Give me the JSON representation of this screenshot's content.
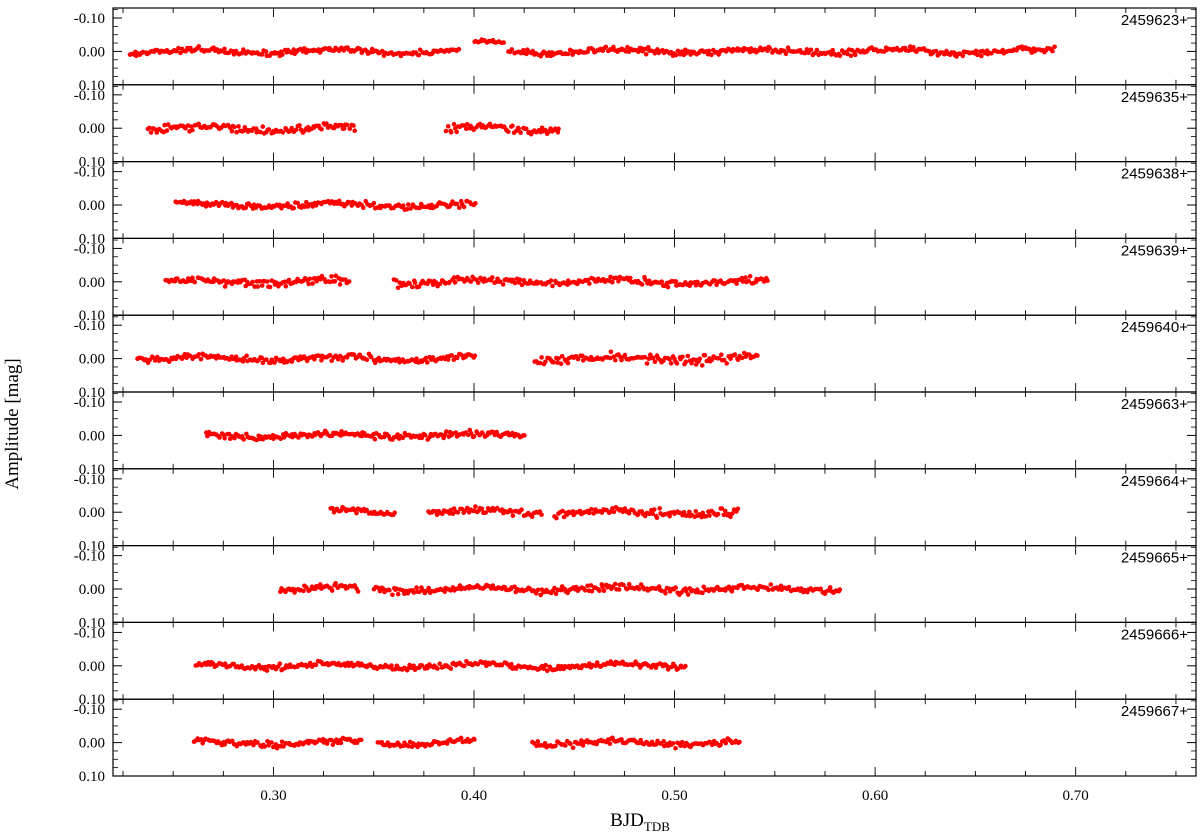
{
  "chart_data": {
    "type": "scatter",
    "title": "",
    "xlabel": {
      "base": "BJD",
      "subscript": "TDB"
    },
    "ylabel": "Amplitude [mag]",
    "xlim": [
      0.22,
      0.76
    ],
    "ylim": [
      0.1,
      -0.13
    ],
    "x_ticks": [
      0.3,
      0.4,
      0.5,
      0.6,
      0.7
    ],
    "x_tick_labels": [
      "0.30",
      "0.40",
      "0.50",
      "0.60",
      "0.70"
    ],
    "y_ticks": [
      -0.1,
      0.0,
      0.1
    ],
    "y_tick_labels": [
      "-0.10",
      "0.00",
      "0.10"
    ],
    "y_inverted": true,
    "grid": false,
    "marker_color": "#ff0000",
    "panels": [
      {
        "label": "2459623+",
        "segments": [
          {
            "x0": 0.228,
            "x1": 0.393,
            "amp": 0.022
          },
          {
            "x0": 0.4,
            "x1": 0.415,
            "amp": 0.012,
            "mean": -0.024
          },
          {
            "x0": 0.417,
            "x1": 0.69,
            "amp": 0.024
          }
        ]
      },
      {
        "label": "2459635+",
        "segments": [
          {
            "x0": 0.237,
            "x1": 0.341,
            "amp": 0.032
          },
          {
            "x0": 0.386,
            "x1": 0.443,
            "amp": 0.036
          }
        ]
      },
      {
        "label": "2459638+",
        "segments": [
          {
            "x0": 0.251,
            "x1": 0.401,
            "amp": 0.026
          }
        ]
      },
      {
        "label": "2459639+",
        "segments": [
          {
            "x0": 0.246,
            "x1": 0.338,
            "amp": 0.034
          },
          {
            "x0": 0.36,
            "x1": 0.547,
            "amp": 0.03
          }
        ]
      },
      {
        "label": "2459640+",
        "segments": [
          {
            "x0": 0.232,
            "x1": 0.401,
            "amp": 0.028
          },
          {
            "x0": 0.43,
            "x1": 0.542,
            "amp": 0.036
          }
        ]
      },
      {
        "label": "2459663+",
        "segments": [
          {
            "x0": 0.266,
            "x1": 0.426,
            "amp": 0.026
          }
        ]
      },
      {
        "label": "2459664+",
        "segments": [
          {
            "x0": 0.328,
            "x1": 0.361,
            "amp": 0.024
          },
          {
            "x0": 0.377,
            "x1": 0.434,
            "amp": 0.026
          },
          {
            "x0": 0.44,
            "x1": 0.532,
            "amp": 0.034
          }
        ]
      },
      {
        "label": "2459665+",
        "segments": [
          {
            "x0": 0.303,
            "x1": 0.343,
            "amp": 0.026
          },
          {
            "x0": 0.35,
            "x1": 0.583,
            "amp": 0.028
          }
        ]
      },
      {
        "label": "2459666+",
        "segments": [
          {
            "x0": 0.261,
            "x1": 0.506,
            "amp": 0.024
          }
        ]
      },
      {
        "label": "2459667+",
        "segments": [
          {
            "x0": 0.26,
            "x1": 0.344,
            "amp": 0.026
          },
          {
            "x0": 0.352,
            "x1": 0.401,
            "amp": 0.024
          },
          {
            "x0": 0.429,
            "x1": 0.533,
            "amp": 0.028
          }
        ]
      }
    ]
  }
}
